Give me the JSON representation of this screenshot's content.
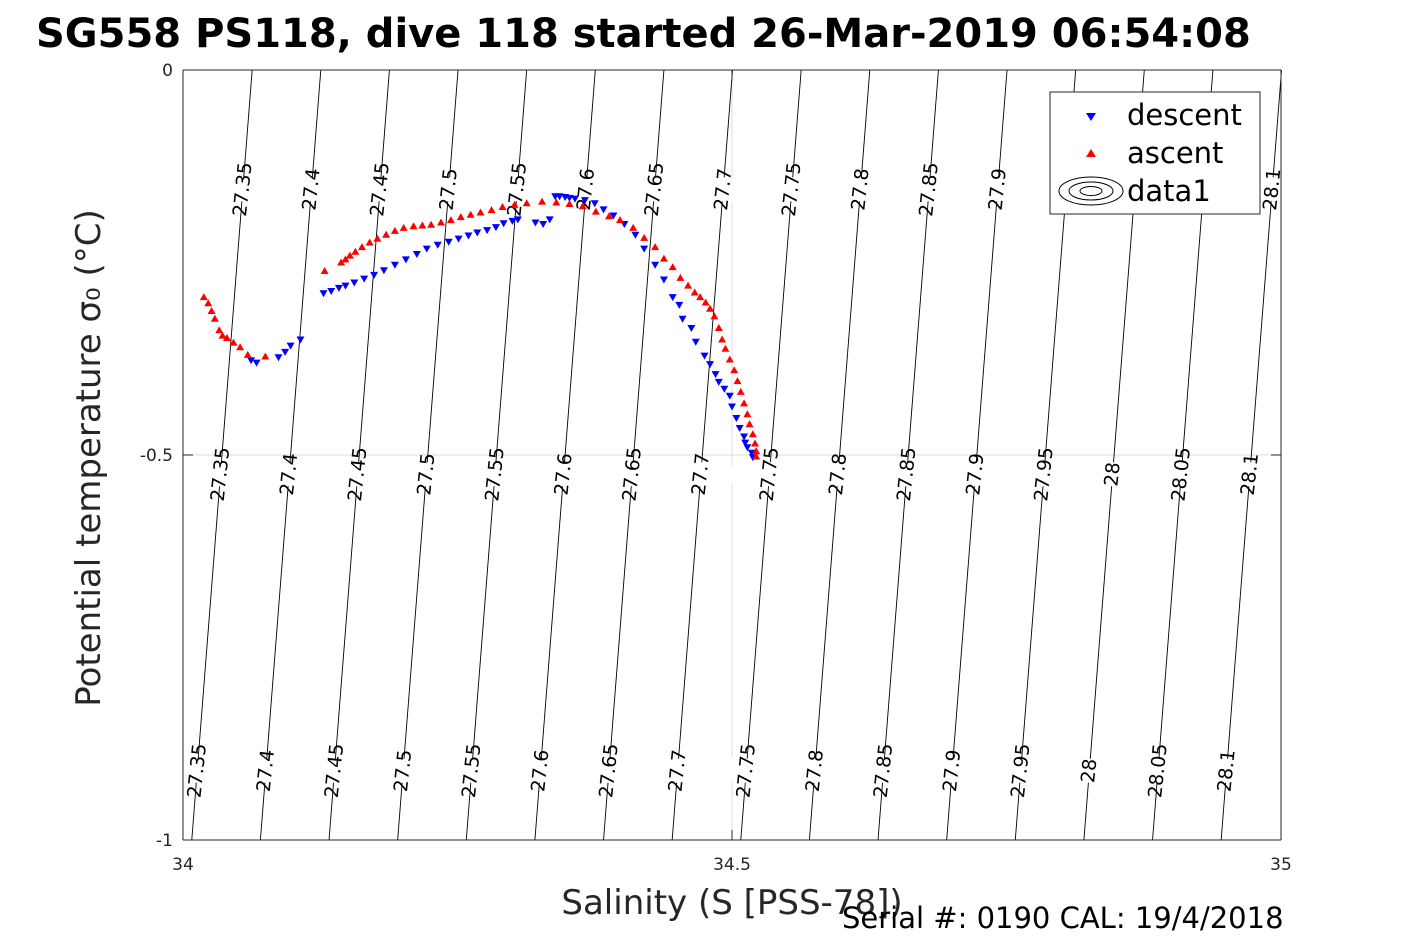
{
  "chart_data": {
    "type": "scatter",
    "title": "SG558 PS118, dive 118 started 26-Mar-2019 06:54:08",
    "xlabel": "Salinity (S [PSS-78])",
    "ylabel": "Potential temperature σ₀ (°C)",
    "xlim": [
      34,
      35
    ],
    "ylim": [
      -1,
      0
    ],
    "xticks": [
      "34",
      "34.5",
      "35"
    ],
    "yticks": [
      "-1",
      "-0.5",
      "0"
    ],
    "grid": true,
    "legend": {
      "placement": "top-right",
      "entries": [
        {
          "label": "descent",
          "color": "#0000ff",
          "marker": "triangle-down"
        },
        {
          "label": "ascent",
          "color": "#ff0000",
          "marker": "triangle-up"
        },
        {
          "label": "data1",
          "marker": "contour"
        }
      ]
    },
    "density_contours": [
      27.35,
      27.4,
      27.45,
      27.5,
      27.55,
      27.6,
      27.65,
      27.7,
      27.75,
      27.8,
      27.85,
      27.9,
      27.95,
      28,
      28.05,
      28.1
    ],
    "contour_labels": {
      "top": [
        "27.35",
        "27.4",
        "27.45",
        "27.5",
        "27.55",
        "27.6",
        "27.65",
        "27.7",
        "27.75",
        "27.8",
        "27.85",
        "27.9",
        "",
        "",
        "",
        "28.1"
      ],
      "middle": [
        "27.35",
        "27.4",
        "27.45",
        "27.5",
        "27.55",
        "27.6",
        "27.65",
        "27.7",
        "27.75",
        "27.8",
        "27.85",
        "27.9",
        "27.95",
        "28",
        "28.05",
        "28.1"
      ],
      "bottom": [
        "27.35",
        "27.4",
        "27.45",
        "27.5",
        "27.55",
        "27.6",
        "27.65",
        "27.7",
        "27.75",
        "27.8",
        "27.85",
        "27.9",
        "27.95",
        "28",
        "28.05",
        "28.1"
      ]
    },
    "series": [
      {
        "name": "descent",
        "color": "#0000ff",
        "x": [
          34.067,
          34.062,
          34.087,
          34.093,
          34.098,
          34.107,
          34.128,
          34.135,
          34.142,
          34.148,
          34.156,
          34.165,
          34.174,
          34.183,
          34.193,
          34.203,
          34.213,
          34.222,
          34.232,
          34.242,
          34.251,
          34.26,
          34.268,
          34.277,
          34.285,
          34.292,
          34.3,
          34.305,
          34.321,
          34.328,
          34.334,
          34.339,
          34.343,
          34.348,
          34.352,
          34.357,
          34.366,
          34.375,
          34.383,
          34.392,
          34.402,
          34.412,
          34.42,
          34.43,
          34.438,
          34.446,
          34.452,
          34.455,
          34.463,
          34.467,
          34.475,
          34.48,
          34.485,
          34.488,
          34.493,
          34.498,
          34.5,
          34.504,
          34.507,
          34.511,
          34.512,
          34.514,
          34.518,
          34.519
        ],
        "y": [
          -0.38,
          -0.377,
          -0.373,
          -0.366,
          -0.358,
          -0.35,
          -0.29,
          -0.287,
          -0.283,
          -0.28,
          -0.276,
          -0.271,
          -0.266,
          -0.26,
          -0.253,
          -0.246,
          -0.239,
          -0.232,
          -0.227,
          -0.223,
          -0.219,
          -0.215,
          -0.211,
          -0.208,
          -0.204,
          -0.199,
          -0.196,
          -0.194,
          -0.198,
          -0.2,
          -0.194,
          -0.164,
          -0.164,
          -0.165,
          -0.166,
          -0.167,
          -0.169,
          -0.173,
          -0.181,
          -0.189,
          -0.2,
          -0.214,
          -0.232,
          -0.253,
          -0.272,
          -0.295,
          -0.305,
          -0.323,
          -0.335,
          -0.353,
          -0.371,
          -0.382,
          -0.395,
          -0.405,
          -0.414,
          -0.423,
          -0.437,
          -0.452,
          -0.465,
          -0.476,
          -0.484,
          -0.49,
          -0.497,
          -0.503
        ]
      },
      {
        "name": "ascent",
        "color": "#ff0000",
        "x": [
          34.019,
          34.023,
          34.026,
          34.029,
          34.033,
          34.036,
          34.04,
          34.046,
          34.052,
          34.059,
          34.075,
          34.129,
          34.144,
          34.148,
          34.152,
          34.157,
          34.163,
          34.17,
          34.177,
          34.185,
          34.193,
          34.201,
          34.21,
          34.218,
          34.226,
          34.235,
          34.244,
          34.253,
          34.262,
          34.271,
          34.281,
          34.291,
          34.302,
          34.313,
          34.327,
          34.34,
          34.352,
          34.364,
          34.376,
          34.388,
          34.398,
          34.41,
          34.42,
          34.43,
          34.438,
          34.446,
          34.453,
          34.46,
          34.466,
          34.471,
          34.476,
          34.48,
          34.484,
          34.488,
          34.491,
          34.494,
          34.498,
          34.502,
          34.505,
          34.508,
          34.511,
          34.514,
          34.516,
          34.519,
          34.521,
          34.522,
          34.522
        ],
        "y": [
          -0.295,
          -0.303,
          -0.313,
          -0.323,
          -0.338,
          -0.345,
          -0.348,
          -0.354,
          -0.36,
          -0.37,
          -0.372,
          -0.261,
          -0.25,
          -0.246,
          -0.241,
          -0.236,
          -0.23,
          -0.224,
          -0.219,
          -0.214,
          -0.209,
          -0.205,
          -0.203,
          -0.202,
          -0.201,
          -0.198,
          -0.195,
          -0.191,
          -0.188,
          -0.185,
          -0.182,
          -0.178,
          -0.175,
          -0.173,
          -0.171,
          -0.172,
          -0.174,
          -0.177,
          -0.184,
          -0.19,
          -0.195,
          -0.205,
          -0.218,
          -0.23,
          -0.245,
          -0.256,
          -0.27,
          -0.28,
          -0.289,
          -0.295,
          -0.302,
          -0.31,
          -0.32,
          -0.335,
          -0.35,
          -0.362,
          -0.376,
          -0.39,
          -0.404,
          -0.418,
          -0.433,
          -0.447,
          -0.46,
          -0.473,
          -0.485,
          -0.495,
          -0.502
        ]
      }
    ]
  },
  "footer": {
    "serial": "Serial #: 0190  CAL: 19/4/2018"
  }
}
